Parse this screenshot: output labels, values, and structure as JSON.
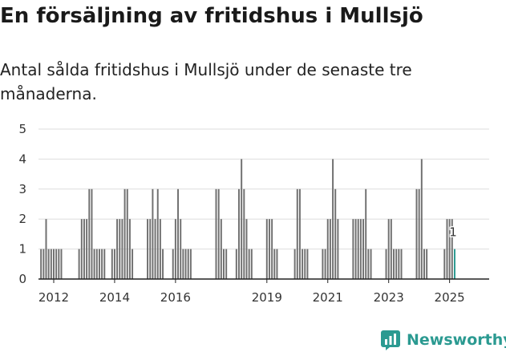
{
  "header": {
    "title": "En försäljning av fritidshus i Mullsjö",
    "subtitle": "Antal sålda fritidshus i Mullsjö under de senaste tre månaderna."
  },
  "chart_data": {
    "type": "bar",
    "title": "En försäljning av fritidshus i Mullsjö",
    "subtitle": "Antal sålda fritidshus i Mullsjö under de senaste tre månaderna.",
    "xlabel": "",
    "ylabel": "",
    "ylim": [
      0,
      5
    ],
    "y_ticks": [
      "0",
      "1",
      "2",
      "3",
      "4",
      "5"
    ],
    "x_ticks": [
      "2012",
      "2014",
      "2016",
      "2019",
      "2021",
      "2023",
      "2025"
    ],
    "x_range": [
      2011.5,
      2026.3
    ],
    "grid": true,
    "series": [
      {
        "name": "Antal sålda fritidshus",
        "points": [
          [
            2011.583,
            1
          ],
          [
            2011.667,
            1
          ],
          [
            2011.75,
            2
          ],
          [
            2011.833,
            1
          ],
          [
            2011.917,
            1
          ],
          [
            2012.0,
            1
          ],
          [
            2012.083,
            1
          ],
          [
            2012.167,
            1
          ],
          [
            2012.25,
            1
          ],
          [
            2012.833,
            1
          ],
          [
            2012.917,
            2
          ],
          [
            2013.0,
            2
          ],
          [
            2013.083,
            2
          ],
          [
            2013.167,
            3
          ],
          [
            2013.25,
            3
          ],
          [
            2013.333,
            1
          ],
          [
            2013.417,
            1
          ],
          [
            2013.5,
            1
          ],
          [
            2013.583,
            1
          ],
          [
            2013.667,
            1
          ],
          [
            2013.917,
            1
          ],
          [
            2014.0,
            1
          ],
          [
            2014.083,
            2
          ],
          [
            2014.167,
            2
          ],
          [
            2014.25,
            2
          ],
          [
            2014.333,
            3
          ],
          [
            2014.417,
            3
          ],
          [
            2014.5,
            2
          ],
          [
            2014.583,
            1
          ],
          [
            2015.083,
            2
          ],
          [
            2015.167,
            2
          ],
          [
            2015.25,
            3
          ],
          [
            2015.333,
            2
          ],
          [
            2015.417,
            3
          ],
          [
            2015.5,
            2
          ],
          [
            2015.583,
            1
          ],
          [
            2015.917,
            1
          ],
          [
            2016.0,
            2
          ],
          [
            2016.083,
            3
          ],
          [
            2016.167,
            2
          ],
          [
            2016.25,
            1
          ],
          [
            2016.333,
            1
          ],
          [
            2016.417,
            1
          ],
          [
            2016.5,
            1
          ],
          [
            2017.333,
            3
          ],
          [
            2017.417,
            3
          ],
          [
            2017.5,
            2
          ],
          [
            2017.583,
            1
          ],
          [
            2017.667,
            1
          ],
          [
            2018.0,
            1
          ],
          [
            2018.083,
            3
          ],
          [
            2018.167,
            4
          ],
          [
            2018.25,
            3
          ],
          [
            2018.333,
            2
          ],
          [
            2018.417,
            1
          ],
          [
            2018.5,
            1
          ],
          [
            2019.0,
            2
          ],
          [
            2019.083,
            2
          ],
          [
            2019.167,
            2
          ],
          [
            2019.25,
            1
          ],
          [
            2019.333,
            1
          ],
          [
            2019.917,
            1
          ],
          [
            2020.0,
            3
          ],
          [
            2020.083,
            3
          ],
          [
            2020.167,
            1
          ],
          [
            2020.25,
            1
          ],
          [
            2020.333,
            1
          ],
          [
            2020.833,
            1
          ],
          [
            2020.917,
            1
          ],
          [
            2021.0,
            2
          ],
          [
            2021.083,
            2
          ],
          [
            2021.167,
            4
          ],
          [
            2021.25,
            3
          ],
          [
            2021.333,
            2
          ],
          [
            2021.833,
            2
          ],
          [
            2021.917,
            2
          ],
          [
            2022.0,
            2
          ],
          [
            2022.083,
            2
          ],
          [
            2022.167,
            2
          ],
          [
            2022.25,
            3
          ],
          [
            2022.333,
            1
          ],
          [
            2022.417,
            1
          ],
          [
            2022.917,
            1
          ],
          [
            2023.0,
            2
          ],
          [
            2023.083,
            2
          ],
          [
            2023.167,
            1
          ],
          [
            2023.25,
            1
          ],
          [
            2023.333,
            1
          ],
          [
            2023.417,
            1
          ],
          [
            2023.917,
            3
          ],
          [
            2024.0,
            3
          ],
          [
            2024.083,
            4
          ],
          [
            2024.167,
            1
          ],
          [
            2024.25,
            1
          ],
          [
            2024.833,
            1
          ],
          [
            2024.917,
            2
          ],
          [
            2025.0,
            2
          ],
          [
            2025.083,
            2
          ]
        ]
      }
    ],
    "highlight": {
      "x": 2025.167,
      "value": 1,
      "label": "1"
    },
    "colors": {
      "bar": "#707070",
      "highlight": "#2b9a91",
      "grid": "#dddddd",
      "axis": "#222222"
    }
  },
  "branding": {
    "logo_text": "Newsworthy"
  }
}
